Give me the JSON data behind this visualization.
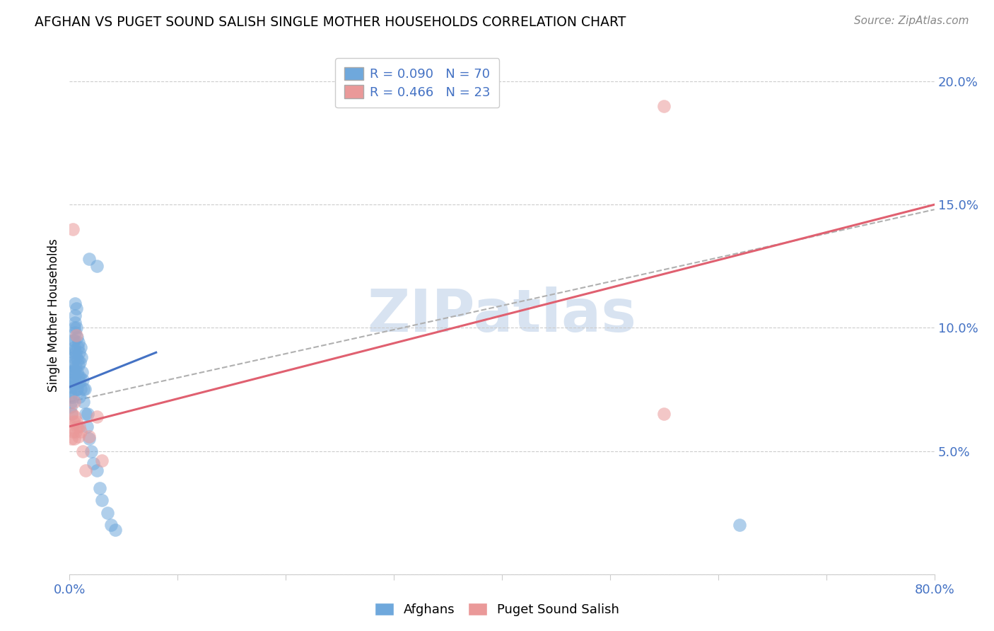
{
  "title": "AFGHAN VS PUGET SOUND SALISH SINGLE MOTHER HOUSEHOLDS CORRELATION CHART",
  "source": "Source: ZipAtlas.com",
  "ylabel": "Single Mother Households",
  "xlim": [
    0.0,
    0.8
  ],
  "ylim": [
    0.0,
    0.21
  ],
  "xtick_positions": [
    0.0,
    0.1,
    0.2,
    0.3,
    0.4,
    0.5,
    0.6,
    0.7,
    0.8
  ],
  "xticklabels": [
    "0.0%",
    "",
    "",
    "",
    "",
    "",
    "",
    "",
    "80.0%"
  ],
  "ytick_positions": [
    0.0,
    0.05,
    0.1,
    0.15,
    0.2
  ],
  "yticklabels": [
    "",
    "5.0%",
    "10.0%",
    "15.0%",
    "20.0%"
  ],
  "afghan_dot_color": "#6fa8dc",
  "salish_dot_color": "#ea9999",
  "afghan_line_color": "#4472c4",
  "salish_line_color": "#e06070",
  "ref_line_color": "#b0b0b0",
  "tick_color": "#4472c4",
  "grid_color": "#cccccc",
  "watermark_color": "#c8d8ec",
  "afghan_R": 0.09,
  "afghan_N": 70,
  "salish_R": 0.466,
  "salish_N": 23,
  "afghans_x": [
    0.0008,
    0.001,
    0.0012,
    0.0015,
    0.0015,
    0.0018,
    0.002,
    0.002,
    0.0022,
    0.0025,
    0.0025,
    0.0028,
    0.003,
    0.003,
    0.0032,
    0.0035,
    0.0035,
    0.0038,
    0.004,
    0.004,
    0.0042,
    0.0045,
    0.0045,
    0.0048,
    0.005,
    0.005,
    0.0052,
    0.0055,
    0.0058,
    0.006,
    0.006,
    0.0062,
    0.0065,
    0.0068,
    0.007,
    0.0072,
    0.0075,
    0.0078,
    0.008,
    0.0082,
    0.0085,
    0.0088,
    0.009,
    0.0092,
    0.0095,
    0.0098,
    0.01,
    0.0105,
    0.011,
    0.0115,
    0.012,
    0.0125,
    0.013,
    0.014,
    0.015,
    0.016,
    0.017,
    0.018,
    0.02,
    0.022,
    0.025,
    0.028,
    0.03,
    0.035,
    0.038,
    0.042,
    0.018,
    0.025,
    0.005,
    0.62
  ],
  "afghans_y": [
    0.072,
    0.068,
    0.075,
    0.07,
    0.065,
    0.08,
    0.082,
    0.076,
    0.079,
    0.085,
    0.078,
    0.072,
    0.09,
    0.086,
    0.095,
    0.082,
    0.088,
    0.077,
    0.095,
    0.091,
    0.1,
    0.083,
    0.092,
    0.078,
    0.105,
    0.098,
    0.102,
    0.084,
    0.09,
    0.108,
    0.075,
    0.1,
    0.088,
    0.082,
    0.096,
    0.075,
    0.092,
    0.087,
    0.08,
    0.094,
    0.085,
    0.078,
    0.09,
    0.072,
    0.086,
    0.08,
    0.075,
    0.092,
    0.088,
    0.082,
    0.079,
    0.075,
    0.07,
    0.075,
    0.065,
    0.06,
    0.065,
    0.055,
    0.05,
    0.045,
    0.042,
    0.035,
    0.03,
    0.025,
    0.02,
    0.018,
    0.128,
    0.125,
    0.11,
    0.02
  ],
  "salish_x": [
    0.0015,
    0.002,
    0.0025,
    0.003,
    0.0035,
    0.004,
    0.0045,
    0.005,
    0.0055,
    0.006,
    0.0065,
    0.007,
    0.008,
    0.009,
    0.01,
    0.012,
    0.015,
    0.018,
    0.025,
    0.03,
    0.55,
    0.55,
    0.003
  ],
  "salish_y": [
    0.06,
    0.055,
    0.065,
    0.058,
    0.062,
    0.07,
    0.055,
    0.064,
    0.058,
    0.097,
    0.062,
    0.06,
    0.056,
    0.06,
    0.058,
    0.05,
    0.042,
    0.056,
    0.064,
    0.046,
    0.065,
    0.19,
    0.14
  ],
  "afghan_regline_x": [
    0.0,
    0.08
  ],
  "afghan_regline_y": [
    0.076,
    0.09
  ],
  "salish_regline_x": [
    0.0,
    0.8
  ],
  "salish_regline_y": [
    0.06,
    0.15
  ],
  "dashed_regline_x": [
    0.0,
    0.8
  ],
  "dashed_regline_y": [
    0.07,
    0.148
  ]
}
